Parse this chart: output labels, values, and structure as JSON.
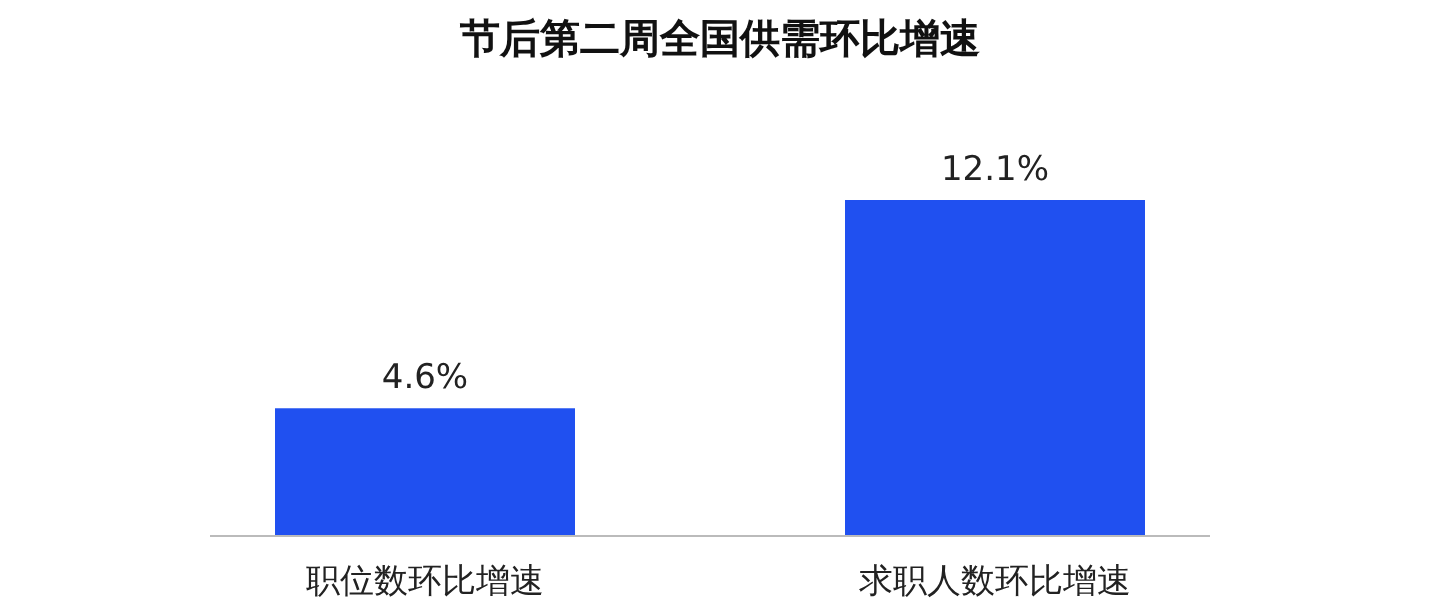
{
  "chart_data": {
    "type": "bar",
    "title": "节后第二周全国供需环比增速",
    "categories": [
      "职位数环比增速",
      "求职人数环比增速"
    ],
    "values": [
      4.6,
      12.1
    ],
    "value_labels": [
      "4.6%",
      "12.1%"
    ],
    "color": "#2050f0"
  }
}
